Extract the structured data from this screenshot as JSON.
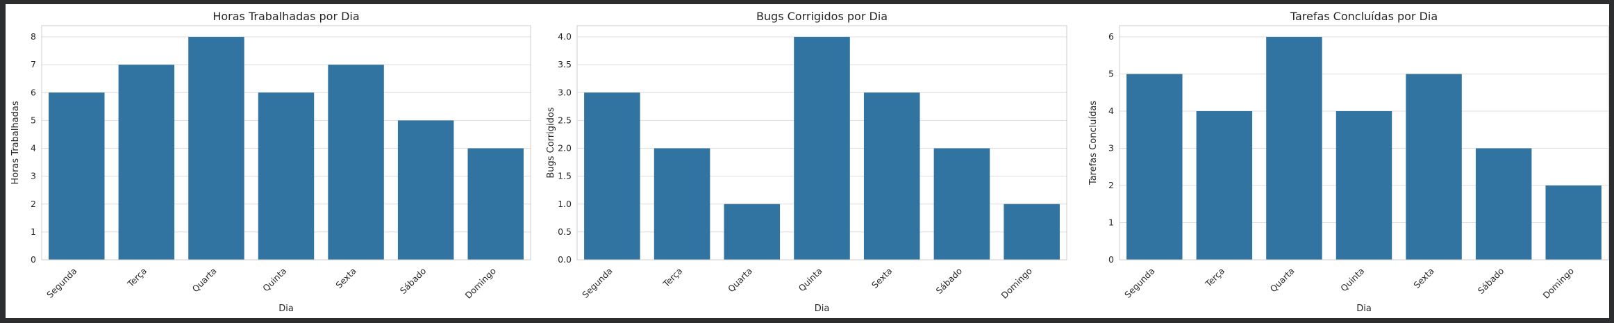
{
  "chart_data": [
    {
      "type": "bar",
      "title": "Horas Trabalhadas por Dia",
      "xlabel": "Dia",
      "ylabel": "Horas Trabalhadas",
      "categories": [
        "Segunda",
        "Terça",
        "Quarta",
        "Quinta",
        "Sexta",
        "Sábado",
        "Domingo"
      ],
      "values": [
        6,
        7,
        8,
        6,
        7,
        5,
        4
      ],
      "ylim": [
        0,
        8.4
      ],
      "yticks": [
        "0",
        "1",
        "2",
        "3",
        "4",
        "5",
        "6",
        "7",
        "8"
      ],
      "ytick_values": [
        0,
        1,
        2,
        3,
        4,
        5,
        6,
        7,
        8
      ],
      "grid": true,
      "bar_color": "#3274a1"
    },
    {
      "type": "bar",
      "title": "Bugs Corrigidos por Dia",
      "xlabel": "Dia",
      "ylabel": "Bugs Corrigidos",
      "categories": [
        "Segunda",
        "Terça",
        "Quarta",
        "Quinta",
        "Sexta",
        "Sábado",
        "Domingo"
      ],
      "values": [
        3,
        2,
        1,
        4,
        3,
        2,
        1
      ],
      "ylim": [
        0,
        4.2
      ],
      "yticks": [
        "0.0",
        "0.5",
        "1.0",
        "1.5",
        "2.0",
        "2.5",
        "3.0",
        "3.5",
        "4.0"
      ],
      "ytick_values": [
        0,
        0.5,
        1,
        1.5,
        2,
        2.5,
        3,
        3.5,
        4
      ],
      "grid": true,
      "bar_color": "#3274a1"
    },
    {
      "type": "bar",
      "title": "Tarefas Concluídas por Dia",
      "xlabel": "Dia",
      "ylabel": "Tarefas Concluídas",
      "categories": [
        "Segunda",
        "Terça",
        "Quarta",
        "Quinta",
        "Sexta",
        "Sábado",
        "Domingo"
      ],
      "values": [
        5,
        4,
        6,
        4,
        5,
        3,
        2
      ],
      "ylim": [
        0,
        6.3
      ],
      "yticks": [
        "0",
        "1",
        "2",
        "3",
        "4",
        "5",
        "6"
      ],
      "ytick_values": [
        0,
        1,
        2,
        3,
        4,
        5,
        6
      ],
      "grid": true,
      "bar_color": "#3274a1"
    }
  ]
}
